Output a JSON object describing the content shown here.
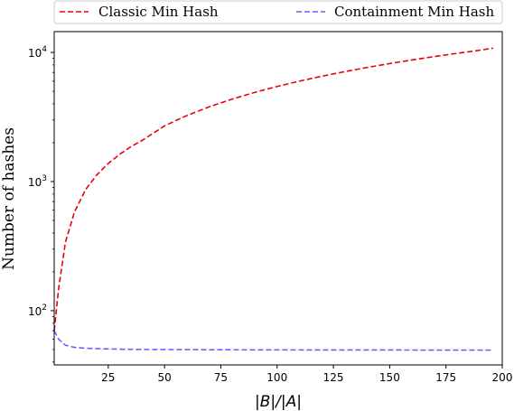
{
  "chart_data": {
    "type": "line",
    "xlabel": "|B|/|A|",
    "ylabel": "Number of hashes",
    "yscale": "log",
    "xlim": [
      1,
      200
    ],
    "ylim": [
      38,
      14500
    ],
    "grid": false,
    "legend_position": "top",
    "x_ticks": [
      25,
      50,
      75,
      100,
      125,
      150,
      175,
      200
    ],
    "y_ticks": [
      {
        "value": 100,
        "base": "10",
        "exp": "2"
      },
      {
        "value": 1000,
        "base": "10",
        "exp": "3"
      },
      {
        "value": 10000,
        "base": "10",
        "exp": "4"
      }
    ],
    "series": [
      {
        "name": "Classic Min Hash",
        "color": "#e8000b",
        "style": "dashed",
        "x": [
          1,
          3,
          6,
          10,
          15,
          20,
          25,
          30,
          35,
          40,
          50,
          60,
          70,
          80,
          90,
          100,
          110,
          120,
          130,
          140,
          150,
          160,
          170,
          180,
          190,
          196
        ],
        "y": [
          70,
          150,
          340,
          580,
          870,
          1130,
          1380,
          1620,
          1860,
          2080,
          2700,
          3250,
          3800,
          4350,
          4900,
          5450,
          6000,
          6550,
          7100,
          7650,
          8200,
          8750,
          9300,
          9850,
          10400,
          10800
        ]
      },
      {
        "name": "Containment Min Hash",
        "color": "#6464ff",
        "style": "dashed",
        "x": [
          1,
          3,
          6,
          10,
          15,
          20,
          30,
          40,
          50,
          75,
          100,
          125,
          150,
          175,
          196
        ],
        "y": [
          70,
          60,
          54,
          52,
          51.2,
          50.8,
          50.3,
          50.1,
          50,
          49.8,
          49.7,
          49.6,
          49.6,
          49.5,
          49.5
        ]
      }
    ]
  }
}
